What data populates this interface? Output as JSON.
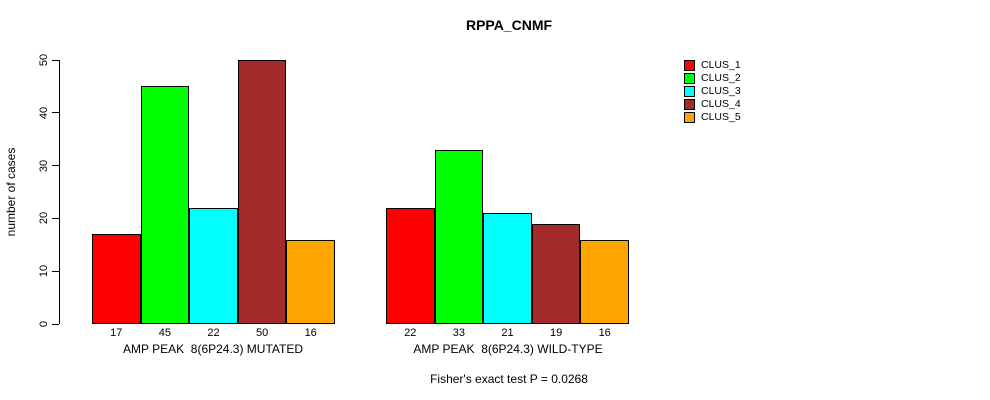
{
  "title": "RPPA_CNMF",
  "y_axis_label": "number of cases",
  "footnote": "Fisher's exact test P = 0.0268",
  "legend": {
    "items": [
      {
        "label": "CLUS_1",
        "color": "#FF0000"
      },
      {
        "label": "CLUS_2",
        "color": "#00FF00"
      },
      {
        "label": "CLUS_3",
        "color": "#00FFFF"
      },
      {
        "label": "CLUS_4",
        "color": "#A52A2A"
      },
      {
        "label": "CLUS_5",
        "color": "#FFA500"
      }
    ]
  },
  "chart_data": {
    "type": "bar",
    "title": "RPPA_CNMF",
    "xlabel": "",
    "ylabel": "number of cases",
    "ylim": [
      0,
      50
    ],
    "y_ticks": [
      0,
      10,
      20,
      30,
      40,
      50
    ],
    "grid": false,
    "legend_position": "top-right",
    "categories": [
      "AMP PEAK  8(6P24.3) MUTATED",
      "AMP PEAK  8(6P24.3) WILD-TYPE"
    ],
    "series": [
      {
        "name": "CLUS_1",
        "color": "#FF0000",
        "values": [
          17,
          22
        ]
      },
      {
        "name": "CLUS_2",
        "color": "#00FF00",
        "values": [
          45,
          33
        ]
      },
      {
        "name": "CLUS_3",
        "color": "#00FFFF",
        "values": [
          22,
          21
        ]
      },
      {
        "name": "CLUS_4",
        "color": "#A52A2A",
        "values": [
          50,
          19
        ]
      },
      {
        "name": "CLUS_5",
        "color": "#FFA500",
        "values": [
          16,
          16
        ]
      }
    ],
    "bar_value_labels": [
      [
        17,
        45,
        22,
        50,
        16
      ],
      [
        22,
        33,
        21,
        19,
        16
      ]
    ],
    "annotation": "Fisher's exact test P = 0.0268"
  }
}
